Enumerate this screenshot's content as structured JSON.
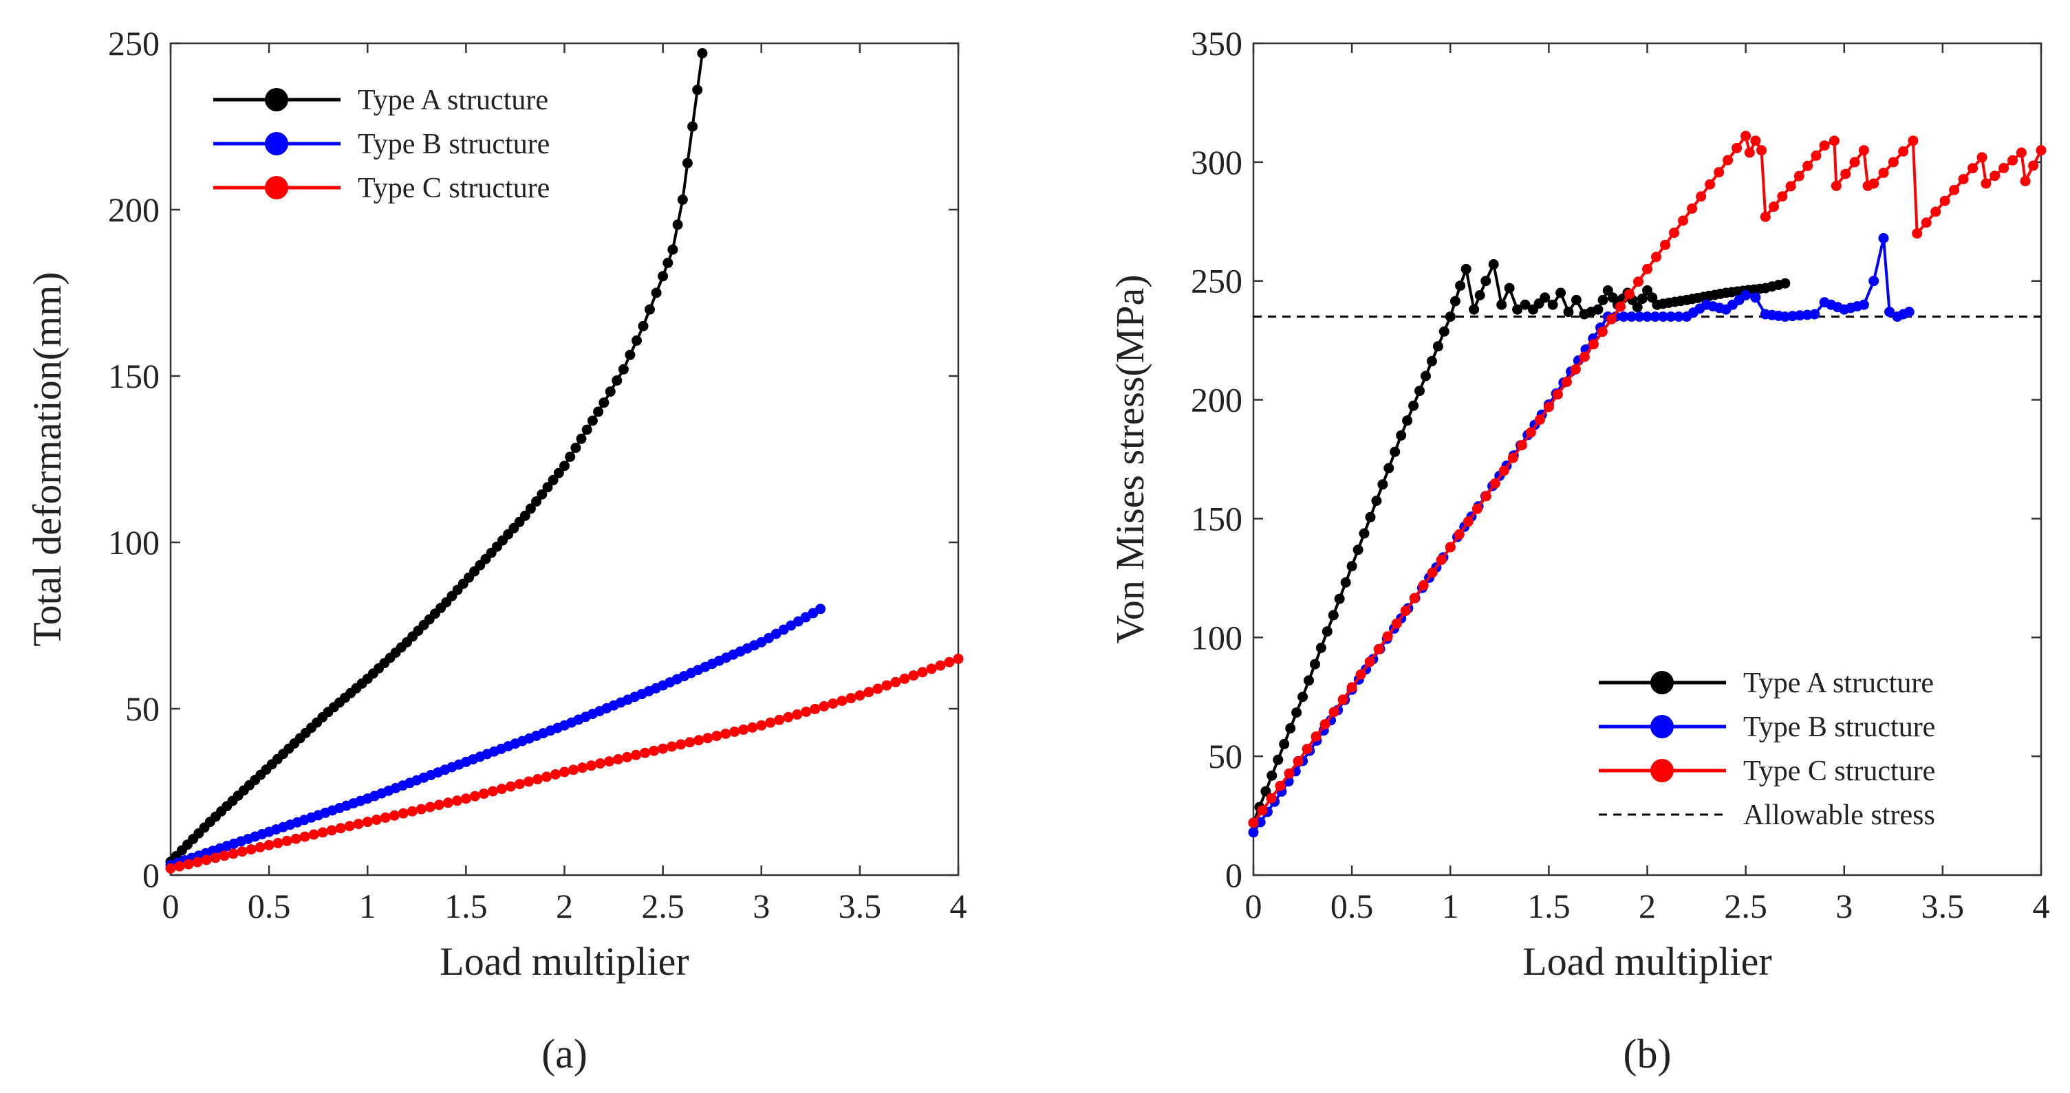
{
  "chart_data": [
    {
      "panel": "(a)",
      "type": "line",
      "xlabel": "Load multiplier",
      "ylabel": "Total deformation(mm)",
      "xlim": [
        0,
        4
      ],
      "ylim": [
        0,
        250
      ],
      "xticks": [
        0,
        0.5,
        1,
        1.5,
        2,
        2.5,
        3,
        3.5,
        4
      ],
      "xtick_labels": [
        "0",
        "0.5",
        "1",
        "1.5",
        "2",
        "2.5",
        "3",
        "3.5",
        "4"
      ],
      "yticks": [
        0,
        50,
        100,
        150,
        200,
        250
      ],
      "ytick_labels": [
        "0",
        "50",
        "100",
        "150",
        "200",
        "250"
      ],
      "legend_position": "top-left",
      "series": [
        {
          "name": "Type A structure",
          "color": "#000000",
          "x": [
            0,
            0.2,
            0.4,
            0.6,
            0.8,
            1.0,
            1.2,
            1.4,
            1.6,
            1.8,
            2.0,
            2.2,
            2.3,
            2.4,
            2.5,
            2.55,
            2.6,
            2.65,
            2.7
          ],
          "y": [
            4,
            16,
            27,
            38,
            49,
            59,
            70,
            82,
            95,
            108,
            123,
            142,
            152,
            165,
            180,
            188,
            203,
            225,
            247
          ]
        },
        {
          "name": "Type B structure",
          "color": "#0000ff",
          "x": [
            0,
            0.5,
            1.0,
            1.5,
            2.0,
            2.5,
            3.0,
            3.3
          ],
          "y": [
            3,
            13,
            23,
            34,
            45,
            57,
            70,
            80
          ]
        },
        {
          "name": "Type C structure",
          "color": "#ff0000",
          "x": [
            0,
            0.5,
            1.0,
            1.5,
            2.0,
            2.5,
            3.0,
            3.5,
            4.0
          ],
          "y": [
            2,
            9,
            16,
            23,
            31,
            38,
            45,
            54,
            65
          ]
        }
      ]
    },
    {
      "panel": "(b)",
      "type": "line",
      "xlabel": "Load multiplier",
      "ylabel": "Von Mises stress(MPa)",
      "xlim": [
        0,
        4
      ],
      "ylim": [
        0,
        350
      ],
      "xticks": [
        0,
        0.5,
        1,
        1.5,
        2,
        2.5,
        3,
        3.5,
        4
      ],
      "xtick_labels": [
        "0",
        "0.5",
        "1",
        "1.5",
        "2",
        "2.5",
        "3",
        "3.5",
        "4"
      ],
      "yticks": [
        0,
        50,
        100,
        150,
        200,
        250,
        300,
        350
      ],
      "ytick_labels": [
        "0",
        "50",
        "100",
        "150",
        "200",
        "250",
        "300",
        "350"
      ],
      "legend_position": "bottom-right",
      "allowable_stress": {
        "name": "Allowable stress",
        "value": 235,
        "color": "#000000"
      },
      "series": [
        {
          "name": "Type A structure",
          "color": "#000000",
          "x": [
            0,
            0.25,
            0.5,
            0.75,
            1.0,
            1.05,
            1.08,
            1.12,
            1.18,
            1.22,
            1.26,
            1.3,
            1.34,
            1.38,
            1.42,
            1.48,
            1.52,
            1.56,
            1.6,
            1.64,
            1.68,
            1.75,
            1.8,
            1.85,
            1.9,
            1.95,
            2.0,
            2.05,
            2.2,
            2.4,
            2.6,
            2.7
          ],
          "y": [
            22,
            75,
            130,
            185,
            235,
            248,
            255,
            238,
            250,
            257,
            240,
            247,
            238,
            240,
            238,
            243,
            240,
            245,
            237,
            242,
            236,
            238,
            246,
            240,
            245,
            239,
            246,
            240,
            242,
            245,
            247,
            249
          ]
        },
        {
          "name": "Type B structure",
          "color": "#0000ff",
          "x": [
            0,
            0.5,
            1.0,
            1.5,
            1.8,
            2.0,
            2.2,
            2.3,
            2.4,
            2.5,
            2.55,
            2.6,
            2.7,
            2.85,
            2.9,
            3.0,
            3.1,
            3.15,
            3.2,
            3.23,
            3.27,
            3.33
          ],
          "y": [
            18,
            78,
            138,
            198,
            235,
            235,
            235,
            240,
            238,
            244,
            243,
            236,
            235,
            236,
            241,
            238,
            240,
            250,
            268,
            237,
            235,
            237
          ]
        },
        {
          "name": "Type C structure",
          "color": "#ff0000",
          "x": [
            0,
            0.5,
            1.0,
            1.5,
            2.0,
            2.5,
            2.52,
            2.55,
            2.58,
            2.6,
            2.9,
            2.95,
            2.96,
            3.1,
            3.12,
            3.15,
            3.35,
            3.37,
            3.7,
            3.72,
            3.9,
            3.92,
            4.0
          ],
          "y": [
            22,
            79,
            138,
            197,
            255,
            311,
            304,
            309,
            305,
            277,
            307,
            309,
            290,
            305,
            290,
            291,
            309,
            270,
            302,
            291,
            304,
            292,
            305
          ]
        }
      ]
    }
  ]
}
